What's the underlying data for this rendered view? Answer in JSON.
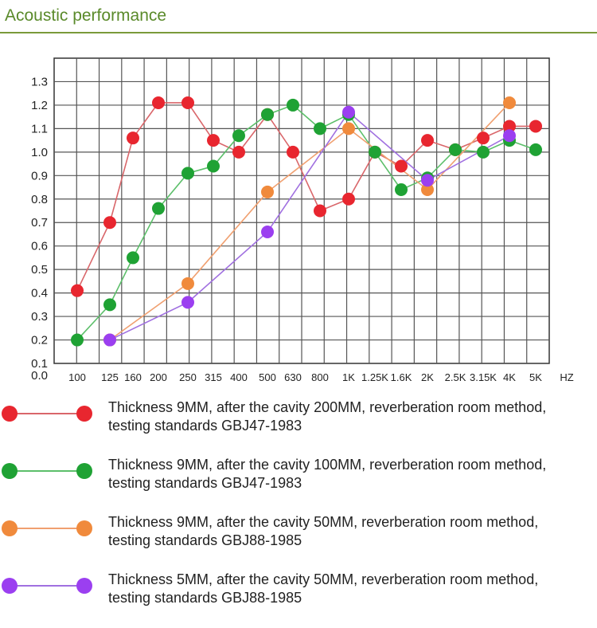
{
  "header": {
    "title": "Acoustic performance"
  },
  "chart_data": {
    "type": "line",
    "title": "",
    "xlabel": "HZ",
    "ylabel": "",
    "categories": [
      "100",
      "125",
      "160",
      "200",
      "250",
      "315",
      "400",
      "500",
      "630",
      "800",
      "1K",
      "1.25K",
      "1.6K",
      "2K",
      "2.5K",
      "3.15K",
      "4K",
      "5K"
    ],
    "y_ticks": [
      "0.0",
      "0.1",
      "0.2",
      "0.3",
      "0.4",
      "0.5",
      "0.6",
      "0.7",
      "0.8",
      "0.9",
      "1.0",
      "1.1",
      "1.2",
      "1.3"
    ],
    "ylim": [
      0.1,
      1.3
    ],
    "grid": true,
    "series": [
      {
        "name": "Thickness 9MM, after the cavity 200MM, reverberation room method, testing standards GBJ47-1983",
        "color": "#e8262f",
        "line_color": "#d9666a",
        "values": [
          0.41,
          0.7,
          1.06,
          1.21,
          1.21,
          1.05,
          1.0,
          1.16,
          1.0,
          0.75,
          0.8,
          1.0,
          0.94,
          1.05,
          1.01,
          1.06,
          1.11,
          1.11
        ]
      },
      {
        "name": "Thickness 9MM, after the cavity 100MM, reverberation room method, testing standards GBJ47-1983",
        "color": "#1fa234",
        "line_color": "#5cbf6a",
        "values": [
          0.2,
          0.35,
          0.55,
          0.76,
          0.91,
          0.94,
          1.07,
          1.16,
          1.2,
          1.1,
          1.16,
          1.0,
          0.84,
          0.89,
          1.01,
          1.0,
          1.05,
          1.01
        ]
      },
      {
        "name": "Thickness 9MM, after the cavity 50MM, reverberation room method, testing standards GBJ88-1985",
        "color": "#f08a3c",
        "line_color": "#f0a070",
        "values": [
          null,
          0.2,
          null,
          null,
          0.44,
          null,
          null,
          0.83,
          null,
          null,
          1.1,
          null,
          null,
          0.84,
          null,
          null,
          1.21,
          null
        ]
      },
      {
        "name": "Thickness 5MM, after the cavity 50MM, reverberation room method, testing standards GBJ88-1985",
        "color": "#9b3ff0",
        "line_color": "#a070e0",
        "values": [
          null,
          0.2,
          null,
          null,
          0.36,
          null,
          null,
          0.66,
          null,
          null,
          1.17,
          null,
          null,
          0.88,
          null,
          null,
          1.07,
          null
        ]
      }
    ]
  },
  "legend": [
    {
      "line1": "Thickness 9MM, after the cavity 200MM, reverberation room method,",
      "line2": "testing standards GBJ47-1983"
    },
    {
      "line1": "Thickness 9MM, after the cavity 100MM, reverberation room method,",
      "line2": "testing standards GBJ47-1983"
    },
    {
      "line1": "Thickness 9MM, after the cavity 50MM, reverberation room method,",
      "line2": "testing standards GBJ88-1985"
    },
    {
      "line1": "Thickness 5MM, after the cavity 50MM, reverberation room method,",
      "line2": "testing standards GBJ88-1985"
    }
  ]
}
